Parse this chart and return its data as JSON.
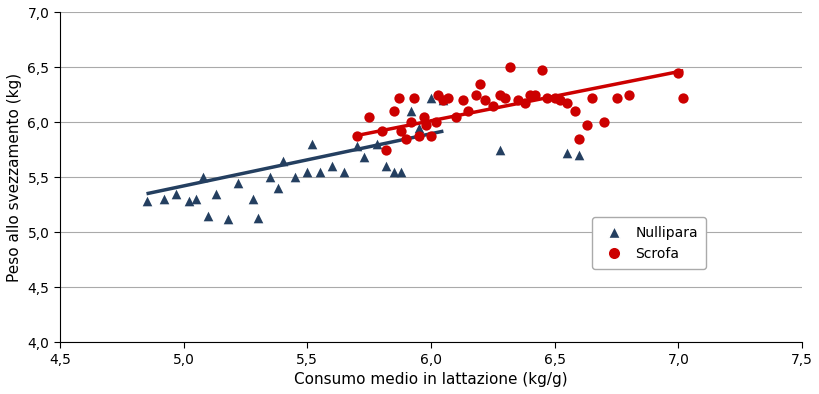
{
  "title": "",
  "xlabel": "Consumo medio in lattazione (kg/g)",
  "ylabel": "Peso allo svezzamento (kg)",
  "xlim": [
    4.5,
    7.5
  ],
  "ylim": [
    4.0,
    7.0
  ],
  "xticks": [
    4.5,
    5.0,
    5.5,
    6.0,
    6.5,
    7.0,
    7.5
  ],
  "yticks": [
    4.0,
    4.5,
    5.0,
    5.5,
    6.0,
    6.5,
    7.0
  ],
  "nullipara_x": [
    4.85,
    4.92,
    4.97,
    5.02,
    5.05,
    5.08,
    5.1,
    5.13,
    5.18,
    5.22,
    5.28,
    5.3,
    5.35,
    5.38,
    5.4,
    5.45,
    5.5,
    5.52,
    5.55,
    5.6,
    5.65,
    5.7,
    5.73,
    5.78,
    5.82,
    5.85,
    5.88,
    5.92,
    5.95,
    6.0,
    6.05,
    6.28,
    6.55,
    6.6
  ],
  "nullipara_y": [
    5.28,
    5.3,
    5.35,
    5.28,
    5.3,
    5.5,
    5.15,
    5.35,
    5.12,
    5.45,
    5.3,
    5.13,
    5.5,
    5.4,
    5.65,
    5.5,
    5.55,
    5.8,
    5.55,
    5.6,
    5.55,
    5.78,
    5.68,
    5.8,
    5.6,
    5.55,
    5.55,
    6.1,
    5.95,
    6.22,
    6.2,
    5.75,
    5.72,
    5.7
  ],
  "scrofa_x": [
    5.7,
    5.75,
    5.8,
    5.82,
    5.85,
    5.87,
    5.88,
    5.9,
    5.92,
    5.93,
    5.95,
    5.97,
    5.98,
    6.0,
    6.02,
    6.03,
    6.05,
    6.07,
    6.1,
    6.13,
    6.15,
    6.18,
    6.2,
    6.22,
    6.25,
    6.28,
    6.3,
    6.32,
    6.35,
    6.38,
    6.4,
    6.42,
    6.45,
    6.47,
    6.5,
    6.52,
    6.55,
    6.58,
    6.6,
    6.63,
    6.65,
    6.7,
    6.75,
    6.8,
    7.0,
    7.02
  ],
  "scrofa_y": [
    5.88,
    6.05,
    5.92,
    5.75,
    6.1,
    6.22,
    5.92,
    5.85,
    6.0,
    6.22,
    5.88,
    6.05,
    5.98,
    5.88,
    6.0,
    6.25,
    6.2,
    6.22,
    6.05,
    6.2,
    6.1,
    6.25,
    6.35,
    6.2,
    6.15,
    6.25,
    6.22,
    6.5,
    6.2,
    6.18,
    6.25,
    6.25,
    6.48,
    6.22,
    6.22,
    6.2,
    6.18,
    6.1,
    5.85,
    5.98,
    6.22,
    6.0,
    6.22,
    6.25,
    6.45,
    6.22
  ],
  "nullipara_trend_x": [
    4.85,
    6.05
  ],
  "nullipara_trend_y": [
    5.35,
    5.92
  ],
  "scrofa_trend_x": [
    5.7,
    7.02
  ],
  "scrofa_trend_y": [
    5.88,
    6.47
  ],
  "nullipara_color": "#243f60",
  "scrofa_color": "#cc0000",
  "trend_nullipara_color": "#243f60",
  "trend_scrofa_color": "#cc0000",
  "background_color": "#ffffff",
  "grid_color": "#aaaaaa",
  "marker_size_nullipara": 48,
  "marker_size_scrofa": 55,
  "trend_linewidth": 2.5,
  "legend_labels": [
    "Nullipara",
    "Scrofa"
  ],
  "legend_marker_size": 9,
  "xlabel_fontsize": 11,
  "ylabel_fontsize": 11,
  "tick_fontsize": 10
}
